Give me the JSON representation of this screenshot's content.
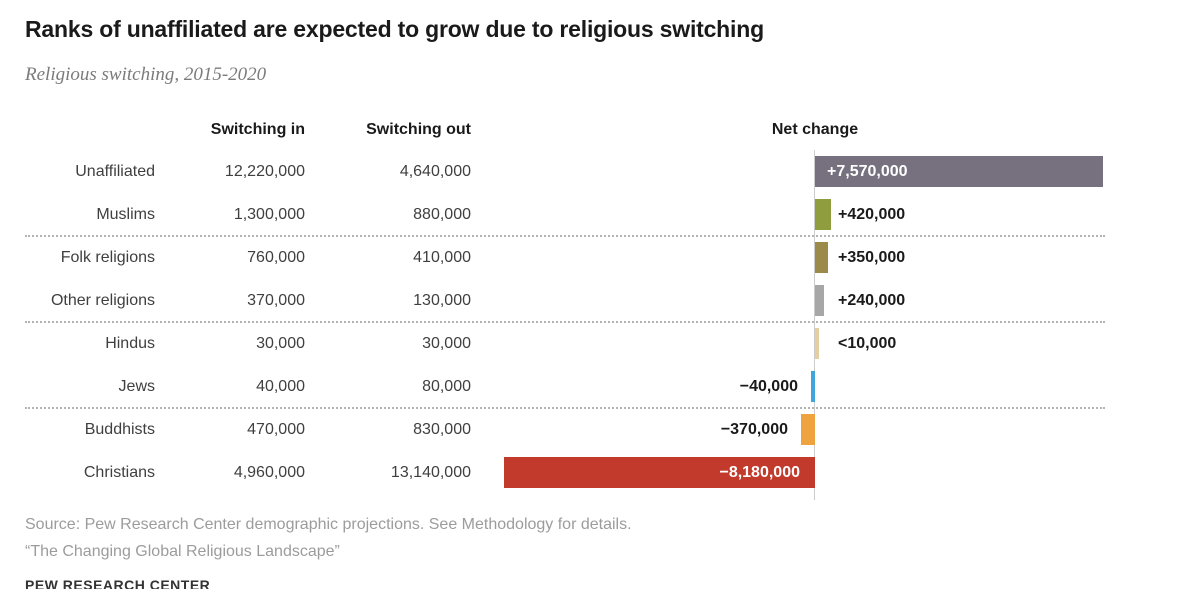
{
  "title": "Ranks of unaffiliated are expected to grow due to religious switching",
  "subtitle": "Religious switching, 2015-2020",
  "columns": {
    "switching_in": "Switching in",
    "switching_out": "Switching out",
    "net_change": "Net change"
  },
  "rows": [
    {
      "label": "Unaffiliated",
      "switching_in": "12,220,000",
      "switching_out": "4,640,000",
      "net_label": "+7,570,000",
      "net_value": 7570000,
      "bar_color": "#76707f",
      "net_label_pos": "inside-left",
      "divider_after": false
    },
    {
      "label": "Muslims",
      "switching_in": "1,300,000",
      "switching_out": "880,000",
      "net_label": "+420,000",
      "net_value": 420000,
      "bar_color": "#8f9d3e",
      "net_label_pos": "right",
      "divider_after": true
    },
    {
      "label": "Folk religions",
      "switching_in": "760,000",
      "switching_out": "410,000",
      "net_label": "+350,000",
      "net_value": 350000,
      "bar_color": "#9b8a4a",
      "net_label_pos": "right",
      "divider_after": false
    },
    {
      "label": "Other religions",
      "switching_in": "370,000",
      "switching_out": "130,000",
      "net_label": "+240,000",
      "net_value": 240000,
      "bar_color": "#a7a7a7",
      "net_label_pos": "right",
      "divider_after": true
    },
    {
      "label": "Hindus",
      "switching_in": "30,000",
      "switching_out": "30,000",
      "net_label": "<10,000",
      "net_value": 10000,
      "bar_color": "#e3cfa2",
      "net_label_pos": "right",
      "divider_after": false
    },
    {
      "label": "Jews",
      "switching_in": "40,000",
      "switching_out": "80,000",
      "net_label": "−40,000",
      "net_value": -40000,
      "bar_color": "#3fa5dc",
      "net_label_pos": "left",
      "divider_after": true
    },
    {
      "label": "Buddhists",
      "switching_in": "470,000",
      "switching_out": "830,000",
      "net_label": "−370,000",
      "net_value": -370000,
      "bar_color": "#efa33e",
      "net_label_pos": "left",
      "divider_after": false
    },
    {
      "label": "Christians",
      "switching_in": "4,960,000",
      "switching_out": "13,140,000",
      "net_label": "−8,180,000",
      "net_value": -8180000,
      "bar_color": "#c23a2b",
      "net_label_pos": "inside-right",
      "divider_after": false
    }
  ],
  "chart_data": {
    "type": "bar",
    "orientation": "horizontal_diverging",
    "title": "Ranks of unaffiliated are expected to grow due to religious switching",
    "subtitle": "Religious switching, 2015-2020",
    "categories": [
      "Unaffiliated",
      "Muslims",
      "Folk religions",
      "Other religions",
      "Hindus",
      "Jews",
      "Buddhists",
      "Christians"
    ],
    "series": [
      {
        "name": "Switching in",
        "values": [
          12220000,
          1300000,
          760000,
          370000,
          30000,
          40000,
          470000,
          4960000
        ]
      },
      {
        "name": "Switching out",
        "values": [
          4640000,
          880000,
          410000,
          130000,
          30000,
          80000,
          830000,
          13140000
        ]
      },
      {
        "name": "Net change",
        "values": [
          7570000,
          420000,
          350000,
          240000,
          10000,
          -40000,
          -370000,
          -8180000
        ]
      }
    ],
    "net_change_display": [
      "+7,570,000",
      "+420,000",
      "+350,000",
      "+240,000",
      "<10,000",
      "−40,000",
      "−370,000",
      "−8,180,000"
    ],
    "bar_colors": [
      "#76707f",
      "#8f9d3e",
      "#9b8a4a",
      "#a7a7a7",
      "#e3cfa2",
      "#3fa5dc",
      "#efa33e",
      "#c23a2b"
    ],
    "x_baseline": 0,
    "xlim": [
      -8180000,
      7570000
    ],
    "grid": false,
    "legend_position": "none",
    "group_dividers_after": [
      "Muslims",
      "Other religions",
      "Jews"
    ]
  },
  "source_line1": "Source: Pew Research Center demographic projections. See Methodology for details.",
  "source_line2": "“The Changing Global Religious Landscape”",
  "footer_brand": "PEW RESEARCH CENTER",
  "colors": {
    "baseline_axis": "#cccccc",
    "divider_dots": "#b3b3b3",
    "body_text": "#3f3f3f",
    "muted_text": "#9c9c9c"
  }
}
